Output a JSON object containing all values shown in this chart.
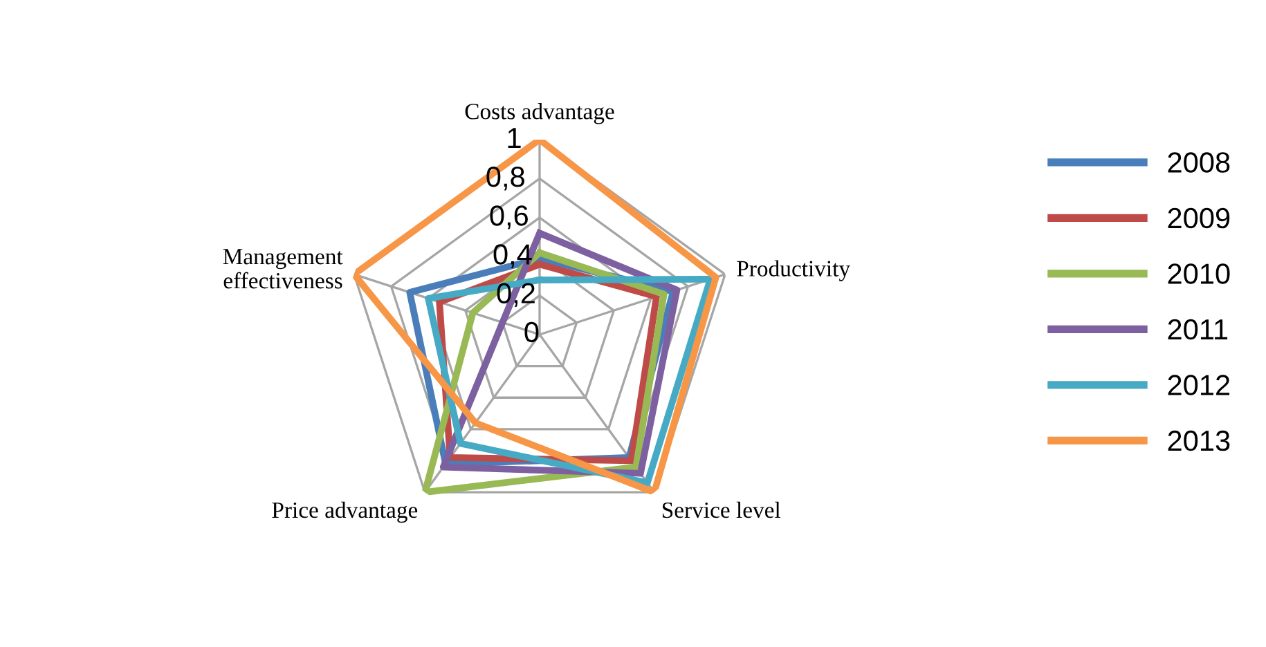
{
  "chart_data": {
    "type": "radar",
    "categories": [
      "Costs advantage",
      "Productivity",
      "Service level",
      "Price advantage",
      "Management effectiveness"
    ],
    "ylim": [
      0,
      1
    ],
    "yticks": [
      0,
      {
        "value": 0.2,
        "label": "0,2"
      },
      {
        "value": 0.4,
        "label": "0,4"
      },
      {
        "value": 0.6,
        "label": "0,6"
      },
      {
        "value": 0.8,
        "label": "0,8"
      },
      1
    ],
    "grid": true,
    "legend": "right",
    "marker": "none",
    "line_style": "solid",
    "series": [
      {
        "name": "2008",
        "color": "#4a7ebb",
        "values": [
          0.39,
          0.72,
          0.78,
          0.82,
          0.7
        ]
      },
      {
        "name": "2009",
        "color": "#be4b48",
        "values": [
          0.36,
          0.63,
          0.8,
          0.78,
          0.54
        ]
      },
      {
        "name": "2010",
        "color": "#98b954",
        "values": [
          0.42,
          0.67,
          0.84,
          1.0,
          0.36
        ]
      },
      {
        "name": "2011",
        "color": "#7d60a0",
        "values": [
          0.52,
          0.74,
          0.88,
          0.84,
          0.2
        ]
      },
      {
        "name": "2012",
        "color": "#46aac5",
        "values": [
          0.28,
          0.92,
          0.94,
          0.69,
          0.6
        ]
      },
      {
        "name": "2013",
        "color": "#f79646",
        "values": [
          1.0,
          0.95,
          1.0,
          0.56,
          1.0
        ]
      }
    ]
  }
}
